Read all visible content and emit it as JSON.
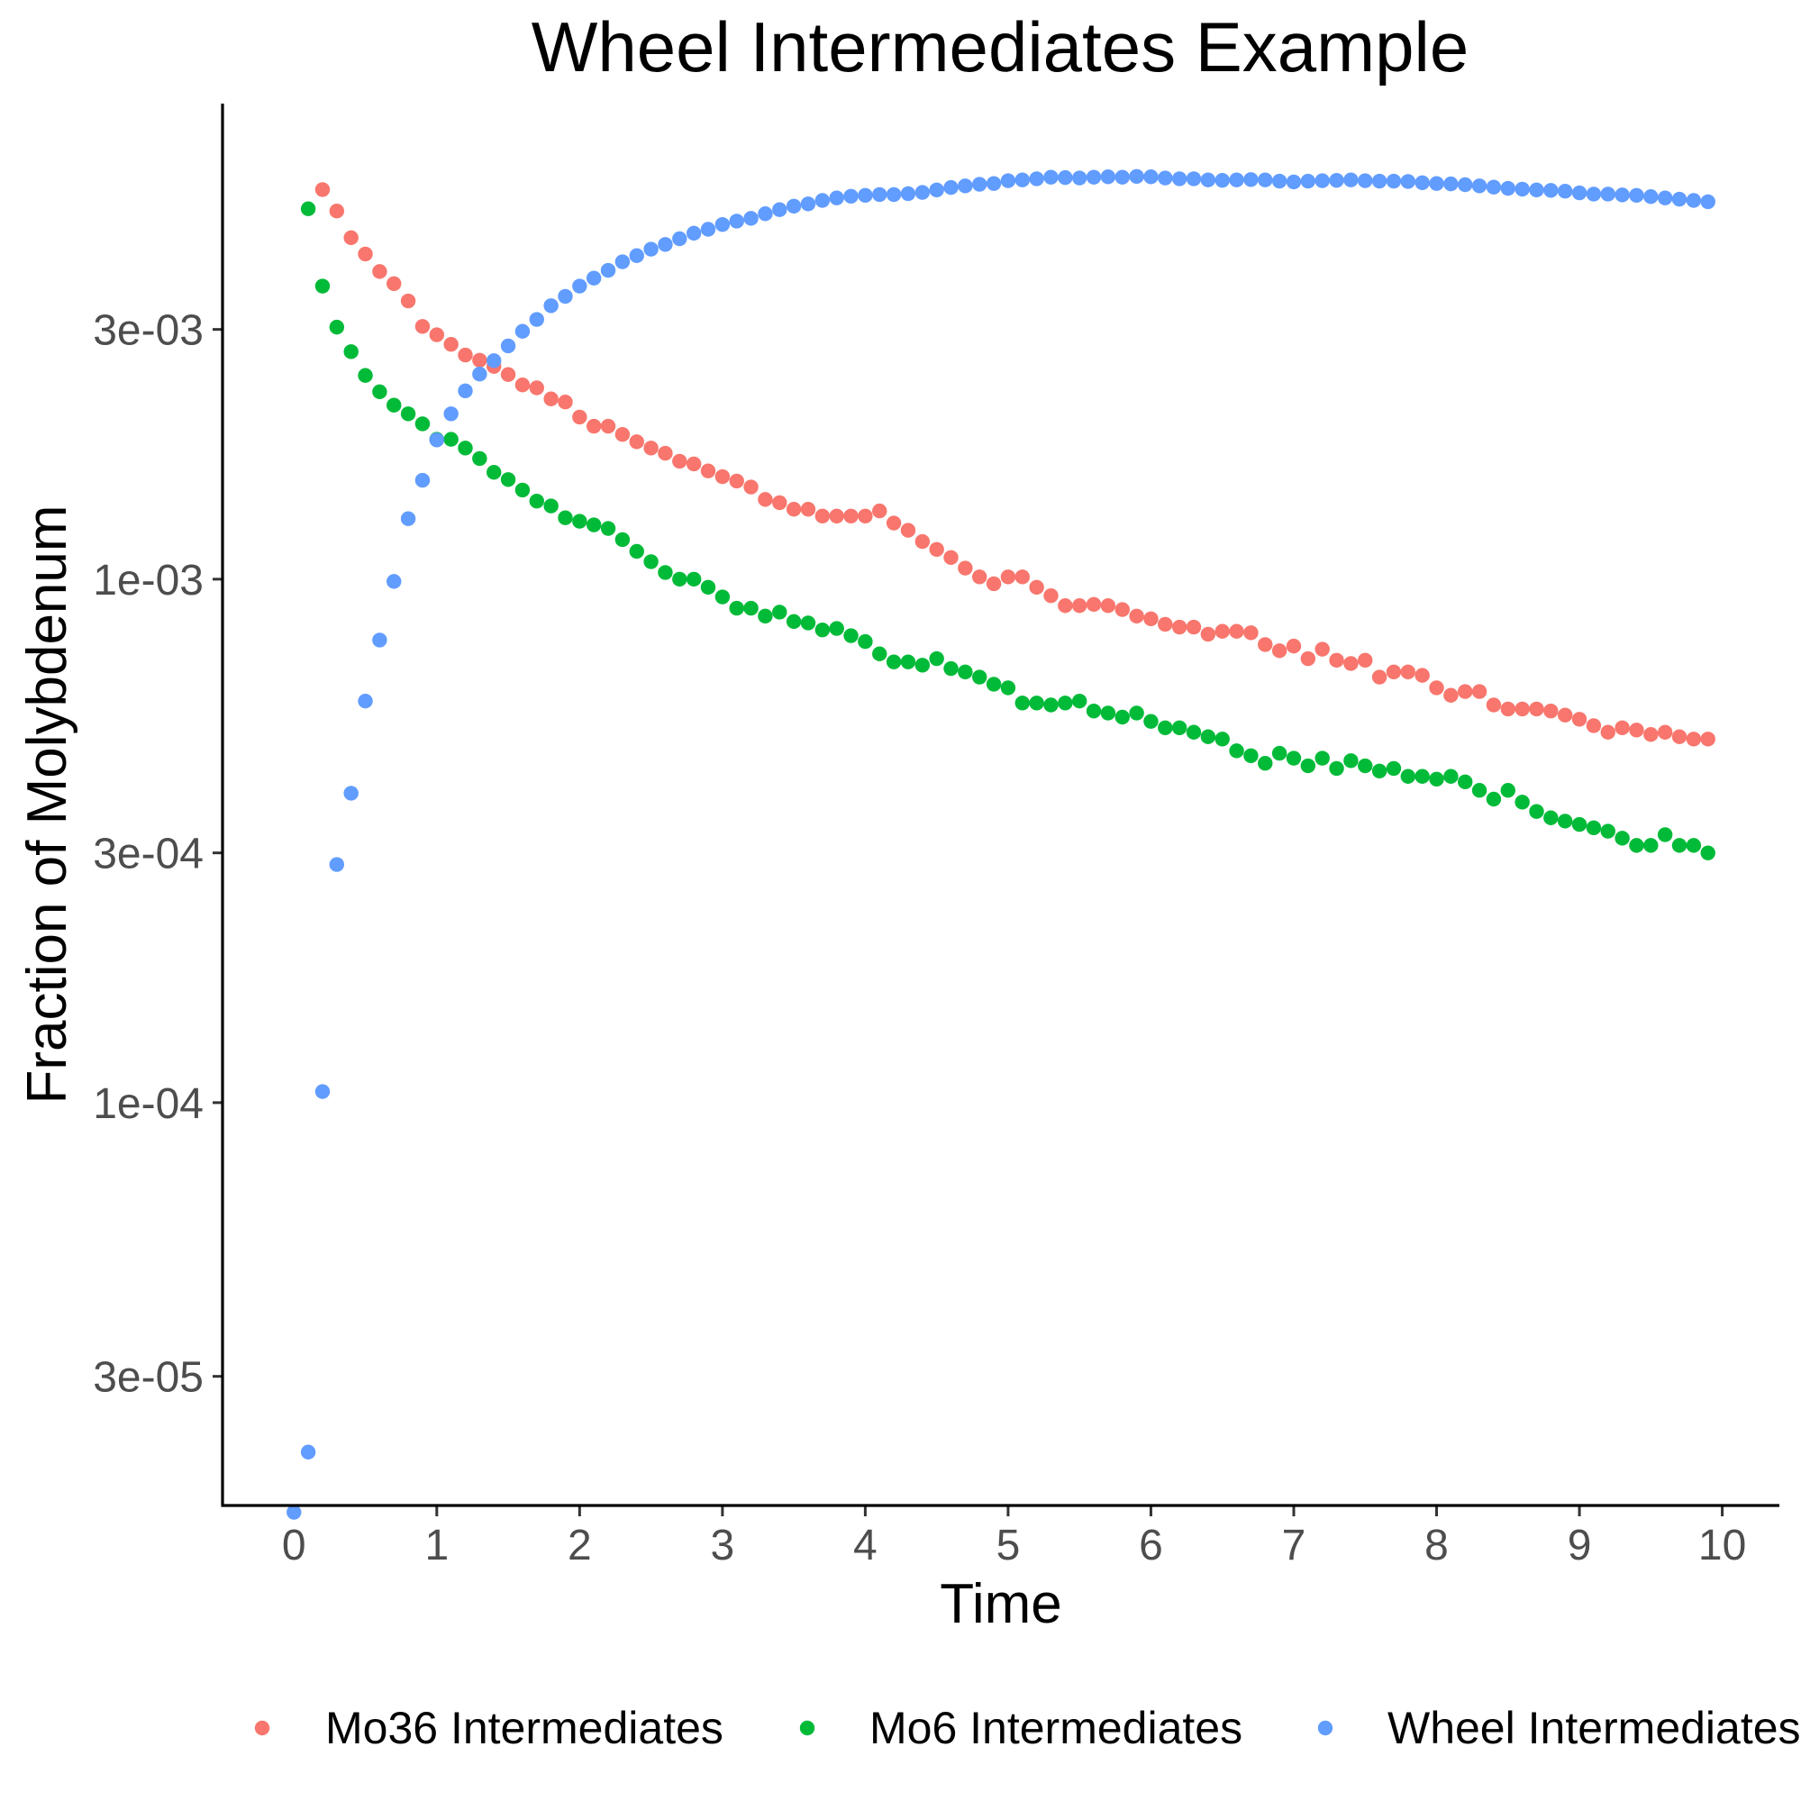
{
  "chart_data": {
    "type": "scatter",
    "title": "Wheel Intermediates Example",
    "xlabel": "Time",
    "ylabel": "Fraction of Molybdenum",
    "x_scale": "linear",
    "y_scale": "log10",
    "xlim": [
      -0.5,
      10.4
    ],
    "ylim": [
      1.7e-05,
      0.0081
    ],
    "x_ticks": [
      0,
      1,
      2,
      3,
      4,
      5,
      6,
      7,
      8,
      9,
      10
    ],
    "x_tick_labels": [
      "0",
      "1",
      "2",
      "3",
      "4",
      "5",
      "6",
      "7",
      "8",
      "9",
      "10"
    ],
    "y_ticks": [
      3e-05,
      0.0001,
      0.0003,
      0.001,
      0.003
    ],
    "y_tick_labels": [
      "3e-05",
      "1e-04",
      "3e-04",
      "1e-03",
      "3e-03"
    ],
    "grid": false,
    "legend_position": "bottom",
    "series": [
      {
        "name": "Mo36 Intermediates",
        "color": "#F8766D",
        "points": [
          [
            0.2,
            0.00555
          ],
          [
            0.3,
            0.00505
          ],
          [
            0.4,
            0.00449
          ],
          [
            0.5,
            0.00418
          ],
          [
            0.6,
            0.00387
          ],
          [
            0.7,
            0.00367
          ],
          [
            0.8,
            0.0034
          ],
          [
            0.9,
            0.00304
          ],
          [
            1.0,
            0.00293
          ],
          [
            1.1,
            0.00281
          ],
          [
            1.2,
            0.00268
          ],
          [
            1.3,
            0.00262
          ],
          [
            1.4,
            0.00255
          ],
          [
            1.5,
            0.00246
          ],
          [
            1.6,
            0.00235
          ],
          [
            1.7,
            0.00232
          ],
          [
            1.8,
            0.00221
          ],
          [
            1.9,
            0.00218
          ],
          [
            2.0,
            0.00204
          ],
          [
            2.1,
            0.00196
          ],
          [
            2.2,
            0.00196
          ],
          [
            2.3,
            0.00189
          ],
          [
            2.4,
            0.00183
          ],
          [
            2.5,
            0.00178
          ],
          [
            2.6,
            0.00174
          ],
          [
            2.7,
            0.00168
          ],
          [
            2.8,
            0.00166
          ],
          [
            2.9,
            0.00161
          ],
          [
            3.0,
            0.00157
          ],
          [
            3.1,
            0.00154
          ],
          [
            3.2,
            0.0015
          ],
          [
            3.3,
            0.00142
          ],
          [
            3.4,
            0.0014
          ],
          [
            3.5,
            0.00136
          ],
          [
            3.6,
            0.00136
          ],
          [
            3.7,
            0.00132
          ],
          [
            3.8,
            0.00132
          ],
          [
            3.9,
            0.00132
          ],
          [
            4.0,
            0.00132
          ],
          [
            4.1,
            0.00135
          ],
          [
            4.2,
            0.00128
          ],
          [
            4.3,
            0.00124
          ],
          [
            4.4,
            0.00118
          ],
          [
            4.5,
            0.00114
          ],
          [
            4.6,
            0.0011
          ],
          [
            4.7,
            0.00105
          ],
          [
            4.8,
            0.00101
          ],
          [
            4.9,
            0.00098
          ],
          [
            5.0,
            0.00101
          ],
          [
            5.1,
            0.00101
          ],
          [
            5.2,
            0.000965
          ],
          [
            5.3,
            0.00093
          ],
          [
            5.4,
            0.00089
          ],
          [
            5.5,
            0.00089
          ],
          [
            5.6,
            0.000895
          ],
          [
            5.7,
            0.00089
          ],
          [
            5.8,
            0.000875
          ],
          [
            5.9,
            0.00085
          ],
          [
            6.0,
            0.00084
          ],
          [
            6.1,
            0.00082
          ],
          [
            6.2,
            0.00081
          ],
          [
            6.3,
            0.00081
          ],
          [
            6.4,
            0.000785
          ],
          [
            6.5,
            0.000795
          ],
          [
            6.6,
            0.000795
          ],
          [
            6.7,
            0.00079
          ],
          [
            6.8,
            0.00075
          ],
          [
            6.9,
            0.00073
          ],
          [
            7.0,
            0.000745
          ],
          [
            7.1,
            0.000705
          ],
          [
            7.2,
            0.000735
          ],
          [
            7.3,
            0.0007
          ],
          [
            7.4,
            0.00069
          ],
          [
            7.5,
            0.0007
          ],
          [
            7.6,
            0.00065
          ],
          [
            7.7,
            0.000665
          ],
          [
            7.8,
            0.000665
          ],
          [
            7.9,
            0.000655
          ],
          [
            8.0,
            0.00062
          ],
          [
            8.1,
            0.0006
          ],
          [
            8.2,
            0.00061
          ],
          [
            8.3,
            0.00061
          ],
          [
            8.4,
            0.000575
          ],
          [
            8.5,
            0.000565
          ],
          [
            8.6,
            0.000565
          ],
          [
            8.7,
            0.000565
          ],
          [
            8.8,
            0.00056
          ],
          [
            8.9,
            0.00055
          ],
          [
            9.0,
            0.00054
          ],
          [
            9.1,
            0.000525
          ],
          [
            9.2,
            0.00051
          ],
          [
            9.3,
            0.00052
          ],
          [
            9.4,
            0.000515
          ],
          [
            9.5,
            0.000505
          ],
          [
            9.6,
            0.00051
          ],
          [
            9.7,
            0.0005
          ],
          [
            9.8,
            0.000495
          ],
          [
            9.9,
            0.000495
          ]
        ]
      },
      {
        "name": "Mo6 Intermediates",
        "color": "#00BA38",
        "points": [
          [
            0.1,
            0.0051
          ],
          [
            0.2,
            0.00363
          ],
          [
            0.3,
            0.00303
          ],
          [
            0.4,
            0.00272
          ],
          [
            0.5,
            0.00245
          ],
          [
            0.6,
            0.00228
          ],
          [
            0.7,
            0.00215
          ],
          [
            0.8,
            0.00207
          ],
          [
            0.9,
            0.00198
          ],
          [
            1.0,
            0.00185
          ],
          [
            1.1,
            0.00185
          ],
          [
            1.2,
            0.00178
          ],
          [
            1.3,
            0.0017
          ],
          [
            1.4,
            0.0016
          ],
          [
            1.5,
            0.00155
          ],
          [
            1.6,
            0.00148
          ],
          [
            1.7,
            0.00141
          ],
          [
            1.8,
            0.00138
          ],
          [
            1.9,
            0.00131
          ],
          [
            2.0,
            0.00129
          ],
          [
            2.1,
            0.00127
          ],
          [
            2.2,
            0.00125
          ],
          [
            2.3,
            0.00119
          ],
          [
            2.4,
            0.00113
          ],
          [
            2.5,
            0.00108
          ],
          [
            2.6,
            0.00103
          ],
          [
            2.7,
            0.001
          ],
          [
            2.8,
            0.001
          ],
          [
            2.9,
            0.000965
          ],
          [
            3.0,
            0.000925
          ],
          [
            3.1,
            0.00088
          ],
          [
            3.2,
            0.00088
          ],
          [
            3.3,
            0.00085
          ],
          [
            3.4,
            0.000865
          ],
          [
            3.5,
            0.00083
          ],
          [
            3.6,
            0.000825
          ],
          [
            3.7,
            0.0008
          ],
          [
            3.8,
            0.000805
          ],
          [
            3.9,
            0.00078
          ],
          [
            4.0,
            0.00076
          ],
          [
            4.1,
            0.00072
          ],
          [
            4.2,
            0.000695
          ],
          [
            4.3,
            0.000695
          ],
          [
            4.4,
            0.000685
          ],
          [
            4.5,
            0.000705
          ],
          [
            4.6,
            0.000675
          ],
          [
            4.7,
            0.000665
          ],
          [
            4.8,
            0.00065
          ],
          [
            4.9,
            0.00063
          ],
          [
            5.0,
            0.00062
          ],
          [
            5.1,
            0.00058
          ],
          [
            5.2,
            0.00058
          ],
          [
            5.3,
            0.000575
          ],
          [
            5.4,
            0.00058
          ],
          [
            5.5,
            0.000585
          ],
          [
            5.6,
            0.00056
          ],
          [
            5.7,
            0.000555
          ],
          [
            5.8,
            0.000545
          ],
          [
            5.9,
            0.000555
          ],
          [
            6.0,
            0.000535
          ],
          [
            6.1,
            0.00052
          ],
          [
            6.2,
            0.00052
          ],
          [
            6.3,
            0.00051
          ],
          [
            6.4,
            0.0005
          ],
          [
            6.5,
            0.000495
          ],
          [
            6.6,
            0.00047
          ],
          [
            6.7,
            0.00046
          ],
          [
            6.8,
            0.000445
          ],
          [
            6.9,
            0.000465
          ],
          [
            7.0,
            0.000455
          ],
          [
            7.1,
            0.00044
          ],
          [
            7.2,
            0.000455
          ],
          [
            7.3,
            0.000435
          ],
          [
            7.4,
            0.00045
          ],
          [
            7.5,
            0.00044
          ],
          [
            7.6,
            0.00043
          ],
          [
            7.7,
            0.000435
          ],
          [
            7.8,
            0.00042
          ],
          [
            7.9,
            0.00042
          ],
          [
            8.0,
            0.000415
          ],
          [
            8.1,
            0.00042
          ],
          [
            8.2,
            0.00041
          ],
          [
            8.3,
            0.000395
          ],
          [
            8.4,
            0.00038
          ],
          [
            8.5,
            0.000395
          ],
          [
            8.6,
            0.000375
          ],
          [
            8.7,
            0.00036
          ],
          [
            8.8,
            0.00035
          ],
          [
            8.9,
            0.000345
          ],
          [
            9.0,
            0.00034
          ],
          [
            9.1,
            0.000335
          ],
          [
            9.2,
            0.00033
          ],
          [
            9.3,
            0.00032
          ],
          [
            9.4,
            0.00031
          ],
          [
            9.5,
            0.00031
          ],
          [
            9.6,
            0.000325
          ],
          [
            9.7,
            0.00031
          ],
          [
            9.8,
            0.00031
          ],
          [
            9.9,
            0.0003
          ]
        ]
      },
      {
        "name": "Wheel Intermediates",
        "color": "#619CFF",
        "points": [
          [
            0.0,
            1.65e-05
          ],
          [
            0.1,
            2.15e-05
          ],
          [
            0.2,
            0.000105
          ],
          [
            0.3,
            0.000285
          ],
          [
            0.4,
            0.00039
          ],
          [
            0.5,
            0.000585
          ],
          [
            0.6,
            0.000765
          ],
          [
            0.7,
            0.00099
          ],
          [
            0.8,
            0.001305
          ],
          [
            0.9,
            0.001545
          ],
          [
            1.0,
            0.001845
          ],
          [
            1.1,
            0.00207
          ],
          [
            1.2,
            0.00229
          ],
          [
            1.3,
            0.002465
          ],
          [
            1.4,
            0.002615
          ],
          [
            1.5,
            0.00279
          ],
          [
            1.6,
            0.002975
          ],
          [
            1.7,
            0.003135
          ],
          [
            1.8,
            0.00333
          ],
          [
            1.9,
            0.00347
          ],
          [
            2.0,
            0.00363
          ],
          [
            2.1,
            0.00376
          ],
          [
            2.2,
            0.00389
          ],
          [
            2.3,
            0.00404
          ],
          [
            2.4,
            0.00415
          ],
          [
            2.5,
            0.00427
          ],
          [
            2.6,
            0.00436
          ],
          [
            2.7,
            0.00447
          ],
          [
            2.8,
            0.00458
          ],
          [
            2.9,
            0.00466
          ],
          [
            3.0,
            0.00476
          ],
          [
            3.1,
            0.00483
          ],
          [
            3.2,
            0.00489
          ],
          [
            3.3,
            0.00499
          ],
          [
            3.4,
            0.00508
          ],
          [
            3.5,
            0.00516
          ],
          [
            3.6,
            0.00521
          ],
          [
            3.7,
            0.00529
          ],
          [
            3.8,
            0.00535
          ],
          [
            3.9,
            0.00539
          ],
          [
            4.0,
            0.00541
          ],
          [
            4.1,
            0.00543
          ],
          [
            4.2,
            0.00543
          ],
          [
            4.3,
            0.00545
          ],
          [
            4.4,
            0.00548
          ],
          [
            4.5,
            0.00554
          ],
          [
            4.6,
            0.0056
          ],
          [
            4.7,
            0.00564
          ],
          [
            4.8,
            0.00568
          ],
          [
            4.9,
            0.0057
          ],
          [
            5.0,
            0.00577
          ],
          [
            5.1,
            0.00579
          ],
          [
            5.2,
            0.00582
          ],
          [
            5.3,
            0.00586
          ],
          [
            5.4,
            0.00585
          ],
          [
            5.5,
            0.00584
          ],
          [
            5.6,
            0.00586
          ],
          [
            5.7,
            0.00587
          ],
          [
            5.8,
            0.00586
          ],
          [
            5.9,
            0.00588
          ],
          [
            6.0,
            0.00587
          ],
          [
            6.1,
            0.00584
          ],
          [
            6.2,
            0.00582
          ],
          [
            6.3,
            0.00582
          ],
          [
            6.4,
            0.00579
          ],
          [
            6.5,
            0.00578
          ],
          [
            6.6,
            0.00579
          ],
          [
            6.7,
            0.0058
          ],
          [
            6.8,
            0.00579
          ],
          [
            6.9,
            0.00576
          ],
          [
            7.0,
            0.00574
          ],
          [
            7.1,
            0.00576
          ],
          [
            7.2,
            0.00577
          ],
          [
            7.3,
            0.00578
          ],
          [
            7.4,
            0.00579
          ],
          [
            7.5,
            0.00577
          ],
          [
            7.6,
            0.00576
          ],
          [
            7.7,
            0.00576
          ],
          [
            7.8,
            0.00575
          ],
          [
            7.9,
            0.00572
          ],
          [
            8.0,
            0.0057
          ],
          [
            8.1,
            0.00569
          ],
          [
            8.2,
            0.00567
          ],
          [
            8.3,
            0.00564
          ],
          [
            8.4,
            0.00561
          ],
          [
            8.5,
            0.00558
          ],
          [
            8.6,
            0.00556
          ],
          [
            8.7,
            0.00554
          ],
          [
            8.8,
            0.00553
          ],
          [
            8.9,
            0.00551
          ],
          [
            9.0,
            0.00547
          ],
          [
            9.1,
            0.00544
          ],
          [
            9.2,
            0.00544
          ],
          [
            9.3,
            0.00542
          ],
          [
            9.4,
            0.00541
          ],
          [
            9.5,
            0.00538
          ],
          [
            9.6,
            0.00535
          ],
          [
            9.7,
            0.00532
          ],
          [
            9.8,
            0.00529
          ],
          [
            9.9,
            0.00526
          ]
        ]
      }
    ]
  }
}
